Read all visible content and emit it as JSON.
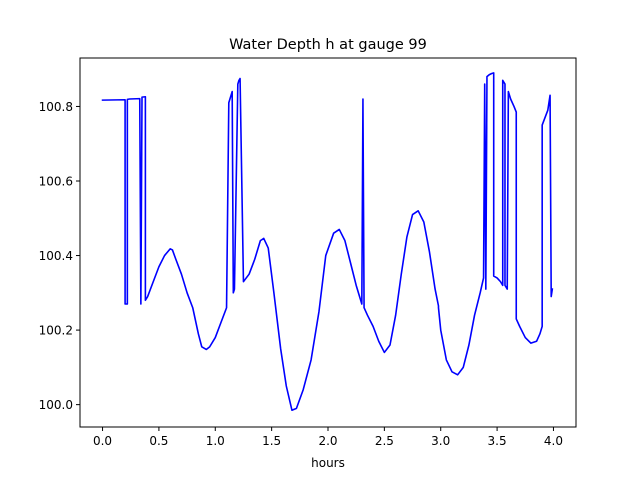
{
  "chart_data": {
    "type": "line",
    "title": "Water Depth h at gauge 99",
    "xlabel": "hours",
    "ylabel": "",
    "xlim": [
      -0.2,
      4.2
    ],
    "ylim": [
      99.94,
      100.93
    ],
    "xticks": [
      0.0,
      0.5,
      1.0,
      1.5,
      2.0,
      2.5,
      3.0,
      3.5,
      4.0
    ],
    "xtick_labels": [
      "0.0",
      "0.5",
      "1.0",
      "1.5",
      "2.0",
      "2.5",
      "3.0",
      "3.5",
      "4.0"
    ],
    "yticks": [
      100.0,
      100.2,
      100.4,
      100.6,
      100.8
    ],
    "ytick_labels": [
      "100.0",
      "100.2",
      "100.4",
      "100.6",
      "100.8"
    ],
    "grid": false,
    "line_color": "#0000ff",
    "series": [
      {
        "x": [
          0.0,
          0.2,
          0.2,
          0.21,
          0.22,
          0.22,
          0.24,
          0.33,
          0.34,
          0.34,
          0.35,
          0.35,
          0.38,
          0.38,
          0.4,
          0.45,
          0.5,
          0.55,
          0.6,
          0.62,
          0.65,
          0.7,
          0.75,
          0.8,
          0.85,
          0.88,
          0.92,
          0.95,
          1.0,
          1.05,
          1.1,
          1.12,
          1.13,
          1.15,
          1.16,
          1.17,
          1.2,
          1.21,
          1.22,
          1.25,
          1.25,
          1.3,
          1.35,
          1.4,
          1.43,
          1.47,
          1.52,
          1.58,
          1.63,
          1.68,
          1.72,
          1.78,
          1.85,
          1.92,
          1.98,
          2.05,
          2.1,
          2.15,
          2.2,
          2.25,
          2.3,
          2.31,
          2.31,
          2.32,
          2.35,
          2.4,
          2.45,
          2.5,
          2.55,
          2.6,
          2.65,
          2.7,
          2.75,
          2.8,
          2.85,
          2.9,
          2.95,
          2.98,
          2.98,
          3.0,
          3.05,
          3.1,
          3.15,
          3.2,
          3.25,
          3.3,
          3.35,
          3.38,
          3.39,
          3.39,
          3.4,
          3.41,
          3.41,
          3.43,
          3.45,
          3.47,
          3.47,
          3.5,
          3.53,
          3.55,
          3.55,
          3.57,
          3.57,
          3.59,
          3.6,
          3.6,
          3.62,
          3.65,
          3.67,
          3.67,
          3.7,
          3.75,
          3.8,
          3.85,
          3.88,
          3.9,
          3.9,
          3.95,
          3.97,
          3.97,
          3.98,
          3.99
        ],
        "y": [
          100.817,
          100.818,
          100.27,
          100.27,
          100.27,
          100.819,
          100.82,
          100.821,
          100.27,
          100.27,
          100.821,
          100.825,
          100.826,
          100.28,
          100.29,
          100.33,
          100.37,
          100.4,
          100.418,
          100.415,
          100.39,
          100.35,
          100.3,
          100.26,
          100.19,
          100.155,
          100.148,
          100.155,
          100.18,
          100.22,
          100.26,
          100.81,
          100.82,
          100.84,
          100.3,
          100.31,
          100.86,
          100.87,
          100.875,
          100.33,
          100.33,
          100.35,
          100.39,
          100.44,
          100.446,
          100.42,
          100.3,
          100.15,
          100.05,
          99.985,
          99.99,
          100.04,
          100.12,
          100.25,
          100.4,
          100.46,
          100.47,
          100.44,
          100.38,
          100.32,
          100.27,
          100.82,
          100.81,
          100.26,
          100.24,
          100.21,
          100.17,
          100.14,
          100.16,
          100.24,
          100.35,
          100.45,
          100.51,
          100.52,
          100.49,
          100.41,
          100.31,
          100.265,
          100.26,
          100.2,
          100.12,
          100.088,
          100.08,
          100.1,
          100.16,
          100.24,
          100.3,
          100.34,
          100.85,
          100.86,
          100.31,
          100.87,
          100.88,
          100.885,
          100.888,
          100.89,
          100.345,
          100.34,
          100.33,
          100.32,
          100.87,
          100.86,
          100.32,
          100.31,
          100.84,
          100.84,
          100.82,
          100.8,
          100.785,
          100.23,
          100.21,
          100.18,
          100.165,
          100.17,
          100.19,
          100.21,
          100.75,
          100.79,
          100.83,
          100.83,
          100.29,
          100.31
        ]
      }
    ]
  }
}
